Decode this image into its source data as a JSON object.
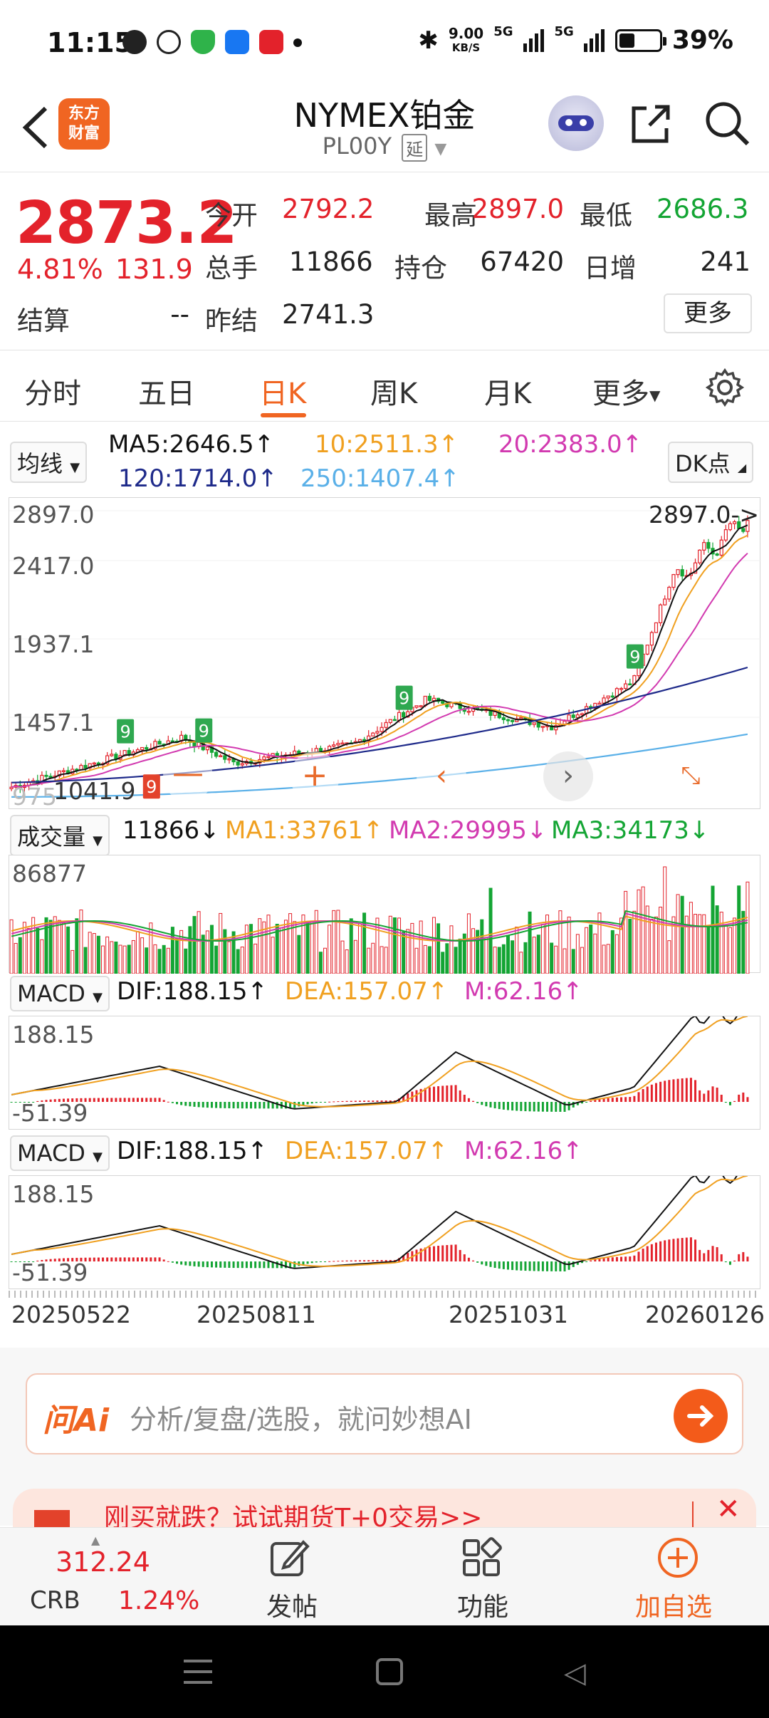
{
  "status": {
    "time": "11:15",
    "net_speed": "9.00",
    "net_unit": "KB/S",
    "sig1": "5G",
    "sig2": "5G",
    "battery": "39%",
    "battery_level": 0.39
  },
  "header": {
    "title": "NYMEX铂金",
    "subtitle": "PL00Y",
    "delay_badge": "延",
    "logo_line1": "东方",
    "logo_line2": "财富"
  },
  "quote": {
    "price": "2873.2",
    "pct": "4.81%",
    "change": "131.9",
    "open_label": "今开",
    "open": "2792.2",
    "high_label": "最高",
    "high": "2897.0",
    "low_label": "最低",
    "low": "2686.3",
    "vol_label": "总手",
    "vol": "11866",
    "oi_label": "持仓",
    "oi": "67420",
    "daily_inc_label": "日增",
    "daily_inc": "241",
    "settle_label": "结算",
    "settle": "--",
    "prev_settle_label": "昨结",
    "prev_settle": "2741.3",
    "more": "更多"
  },
  "tabs": [
    "分时",
    "五日",
    "日K",
    "周K",
    "月K",
    "更多"
  ],
  "ma": {
    "selector": "均线",
    "ma5": "MA5:2646.5↑",
    "ma10": "10:2511.3↑",
    "ma20": "20:2383.0↑",
    "ma120": "120:1714.0↑",
    "ma250": "250:1407.4↑",
    "dk": "DK点"
  },
  "kline": {
    "y1": "2897.0",
    "y2": "2417.0",
    "y3": "1937.1",
    "y4": "1457.1",
    "ylow": "1041.9",
    "ylow_prefix": "975",
    "high_marker": "2897.0->"
  },
  "volume": {
    "selector": "成交量",
    "v": "11866↓",
    "ma1": "MA1:33761↑",
    "ma2": "MA2:29995↓",
    "ma3": "MA3:34173↓",
    "max": "86877"
  },
  "macd1": {
    "selector": "MACD",
    "dif": "DIF:188.15↑",
    "dea": "DEA:157.07↑",
    "m": "M:62.16↑",
    "top": "188.15",
    "bottom": "-51.39"
  },
  "macd2": {
    "selector": "MACD",
    "dif": "DIF:188.15↑",
    "dea": "DEA:157.07↑",
    "m": "M:62.16↑",
    "top": "188.15",
    "bottom": "-51.39"
  },
  "dates": [
    "20250522",
    "20250811",
    "20251031",
    "20260126"
  ],
  "ask": {
    "brand": "问Ai",
    "placeholder": "分析/复盘/选股，就问妙想AI"
  },
  "banner": {
    "text": "刚买就跌？试试期货T+0交易>>"
  },
  "bottom": {
    "crb_value": "312.24",
    "crb_label": "CRB",
    "crb_pct": "1.24%",
    "post": "发帖",
    "func": "功能",
    "add": "加自选"
  },
  "colors": {
    "accent": "#f06522",
    "up": "#e3222b",
    "down": "#14a534",
    "ma5": "#111111",
    "ma10": "#f0a020",
    "ma20": "#d23ab0",
    "ma120": "#1e2a8a",
    "ma250": "#5ab0e8"
  }
}
